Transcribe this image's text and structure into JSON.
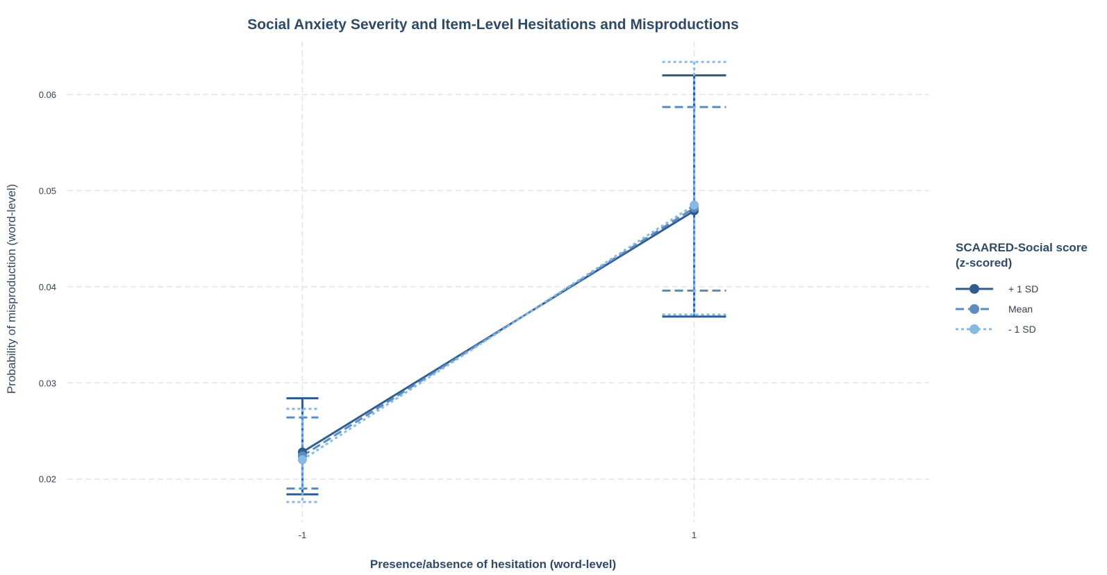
{
  "chart_data": {
    "type": "line",
    "title": "Social Anxiety Severity and Item-Level Hesitations and Misproductions",
    "xlabel": "Presence/absence of hesitation (word-level)",
    "ylabel": "Probability of misproduction (word-level)",
    "x": [
      -1,
      1
    ],
    "x_tick_labels": [
      "-1",
      "1"
    ],
    "xlim": [
      -2.2,
      2.2
    ],
    "ylim": [
      0.0155,
      0.0655
    ],
    "y_ticks": [
      0.02,
      0.03,
      0.04,
      0.05,
      0.06
    ],
    "y_tick_labels": [
      "0.02",
      "0.03",
      "0.04",
      "0.05",
      "0.06"
    ],
    "grid": true,
    "error_bars": true,
    "legend": {
      "title_lines": [
        "SCAARED-Social score",
        "(z-scored)"
      ],
      "position": "right"
    },
    "series": [
      {
        "name": "+ 1 SD",
        "color": "#2e5e91",
        "dash": "solid",
        "values": [
          0.0228,
          0.0479
        ],
        "lower": [
          0.0184,
          0.0369
        ],
        "upper": [
          0.0284,
          0.062
        ]
      },
      {
        "name": "Mean",
        "color": "#5b8bc0",
        "dash": "dashed",
        "values": [
          0.0224,
          0.0482
        ],
        "lower": [
          0.019,
          0.0396
        ],
        "upper": [
          0.0264,
          0.0587
        ]
      },
      {
        "name": "- 1 SD",
        "color": "#86b9e6",
        "dash": "dotted",
        "values": [
          0.022,
          0.0485
        ],
        "lower": [
          0.0176,
          0.0371
        ],
        "upper": [
          0.0273,
          0.0634
        ]
      }
    ]
  }
}
